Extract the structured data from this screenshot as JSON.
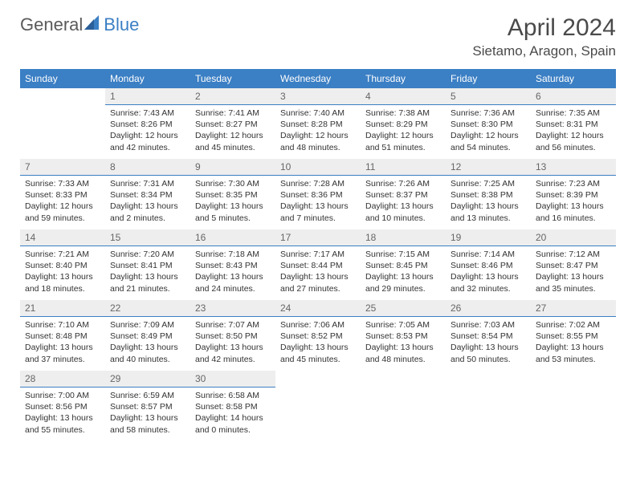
{
  "logo": {
    "text1": "General",
    "text2": "Blue"
  },
  "title": "April 2024",
  "subtitle": "Sietamo, Aragon, Spain",
  "colors": {
    "header_bg": "#3b7fc4",
    "header_text": "#ffffff",
    "daynum_bg": "#eeeeee",
    "daynum_border": "#3b7fc4",
    "body_text": "#333333",
    "title_text": "#4a4a4a",
    "logo_gray": "#5a5a5a",
    "logo_blue": "#3b7fc4"
  },
  "dayNames": [
    "Sunday",
    "Monday",
    "Tuesday",
    "Wednesday",
    "Thursday",
    "Friday",
    "Saturday"
  ],
  "weeks": [
    [
      null,
      {
        "n": "1",
        "sr": "Sunrise: 7:43 AM",
        "ss": "Sunset: 8:26 PM",
        "d1": "Daylight: 12 hours",
        "d2": "and 42 minutes."
      },
      {
        "n": "2",
        "sr": "Sunrise: 7:41 AM",
        "ss": "Sunset: 8:27 PM",
        "d1": "Daylight: 12 hours",
        "d2": "and 45 minutes."
      },
      {
        "n": "3",
        "sr": "Sunrise: 7:40 AM",
        "ss": "Sunset: 8:28 PM",
        "d1": "Daylight: 12 hours",
        "d2": "and 48 minutes."
      },
      {
        "n": "4",
        "sr": "Sunrise: 7:38 AM",
        "ss": "Sunset: 8:29 PM",
        "d1": "Daylight: 12 hours",
        "d2": "and 51 minutes."
      },
      {
        "n": "5",
        "sr": "Sunrise: 7:36 AM",
        "ss": "Sunset: 8:30 PM",
        "d1": "Daylight: 12 hours",
        "d2": "and 54 minutes."
      },
      {
        "n": "6",
        "sr": "Sunrise: 7:35 AM",
        "ss": "Sunset: 8:31 PM",
        "d1": "Daylight: 12 hours",
        "d2": "and 56 minutes."
      }
    ],
    [
      {
        "n": "7",
        "sr": "Sunrise: 7:33 AM",
        "ss": "Sunset: 8:33 PM",
        "d1": "Daylight: 12 hours",
        "d2": "and 59 minutes."
      },
      {
        "n": "8",
        "sr": "Sunrise: 7:31 AM",
        "ss": "Sunset: 8:34 PM",
        "d1": "Daylight: 13 hours",
        "d2": "and 2 minutes."
      },
      {
        "n": "9",
        "sr": "Sunrise: 7:30 AM",
        "ss": "Sunset: 8:35 PM",
        "d1": "Daylight: 13 hours",
        "d2": "and 5 minutes."
      },
      {
        "n": "10",
        "sr": "Sunrise: 7:28 AM",
        "ss": "Sunset: 8:36 PM",
        "d1": "Daylight: 13 hours",
        "d2": "and 7 minutes."
      },
      {
        "n": "11",
        "sr": "Sunrise: 7:26 AM",
        "ss": "Sunset: 8:37 PM",
        "d1": "Daylight: 13 hours",
        "d2": "and 10 minutes."
      },
      {
        "n": "12",
        "sr": "Sunrise: 7:25 AM",
        "ss": "Sunset: 8:38 PM",
        "d1": "Daylight: 13 hours",
        "d2": "and 13 minutes."
      },
      {
        "n": "13",
        "sr": "Sunrise: 7:23 AM",
        "ss": "Sunset: 8:39 PM",
        "d1": "Daylight: 13 hours",
        "d2": "and 16 minutes."
      }
    ],
    [
      {
        "n": "14",
        "sr": "Sunrise: 7:21 AM",
        "ss": "Sunset: 8:40 PM",
        "d1": "Daylight: 13 hours",
        "d2": "and 18 minutes."
      },
      {
        "n": "15",
        "sr": "Sunrise: 7:20 AM",
        "ss": "Sunset: 8:41 PM",
        "d1": "Daylight: 13 hours",
        "d2": "and 21 minutes."
      },
      {
        "n": "16",
        "sr": "Sunrise: 7:18 AM",
        "ss": "Sunset: 8:43 PM",
        "d1": "Daylight: 13 hours",
        "d2": "and 24 minutes."
      },
      {
        "n": "17",
        "sr": "Sunrise: 7:17 AM",
        "ss": "Sunset: 8:44 PM",
        "d1": "Daylight: 13 hours",
        "d2": "and 27 minutes."
      },
      {
        "n": "18",
        "sr": "Sunrise: 7:15 AM",
        "ss": "Sunset: 8:45 PM",
        "d1": "Daylight: 13 hours",
        "d2": "and 29 minutes."
      },
      {
        "n": "19",
        "sr": "Sunrise: 7:14 AM",
        "ss": "Sunset: 8:46 PM",
        "d1": "Daylight: 13 hours",
        "d2": "and 32 minutes."
      },
      {
        "n": "20",
        "sr": "Sunrise: 7:12 AM",
        "ss": "Sunset: 8:47 PM",
        "d1": "Daylight: 13 hours",
        "d2": "and 35 minutes."
      }
    ],
    [
      {
        "n": "21",
        "sr": "Sunrise: 7:10 AM",
        "ss": "Sunset: 8:48 PM",
        "d1": "Daylight: 13 hours",
        "d2": "and 37 minutes."
      },
      {
        "n": "22",
        "sr": "Sunrise: 7:09 AM",
        "ss": "Sunset: 8:49 PM",
        "d1": "Daylight: 13 hours",
        "d2": "and 40 minutes."
      },
      {
        "n": "23",
        "sr": "Sunrise: 7:07 AM",
        "ss": "Sunset: 8:50 PM",
        "d1": "Daylight: 13 hours",
        "d2": "and 42 minutes."
      },
      {
        "n": "24",
        "sr": "Sunrise: 7:06 AM",
        "ss": "Sunset: 8:52 PM",
        "d1": "Daylight: 13 hours",
        "d2": "and 45 minutes."
      },
      {
        "n": "25",
        "sr": "Sunrise: 7:05 AM",
        "ss": "Sunset: 8:53 PM",
        "d1": "Daylight: 13 hours",
        "d2": "and 48 minutes."
      },
      {
        "n": "26",
        "sr": "Sunrise: 7:03 AM",
        "ss": "Sunset: 8:54 PM",
        "d1": "Daylight: 13 hours",
        "d2": "and 50 minutes."
      },
      {
        "n": "27",
        "sr": "Sunrise: 7:02 AM",
        "ss": "Sunset: 8:55 PM",
        "d1": "Daylight: 13 hours",
        "d2": "and 53 minutes."
      }
    ],
    [
      {
        "n": "28",
        "sr": "Sunrise: 7:00 AM",
        "ss": "Sunset: 8:56 PM",
        "d1": "Daylight: 13 hours",
        "d2": "and 55 minutes."
      },
      {
        "n": "29",
        "sr": "Sunrise: 6:59 AM",
        "ss": "Sunset: 8:57 PM",
        "d1": "Daylight: 13 hours",
        "d2": "and 58 minutes."
      },
      {
        "n": "30",
        "sr": "Sunrise: 6:58 AM",
        "ss": "Sunset: 8:58 PM",
        "d1": "Daylight: 14 hours",
        "d2": "and 0 minutes."
      },
      null,
      null,
      null,
      null
    ]
  ]
}
